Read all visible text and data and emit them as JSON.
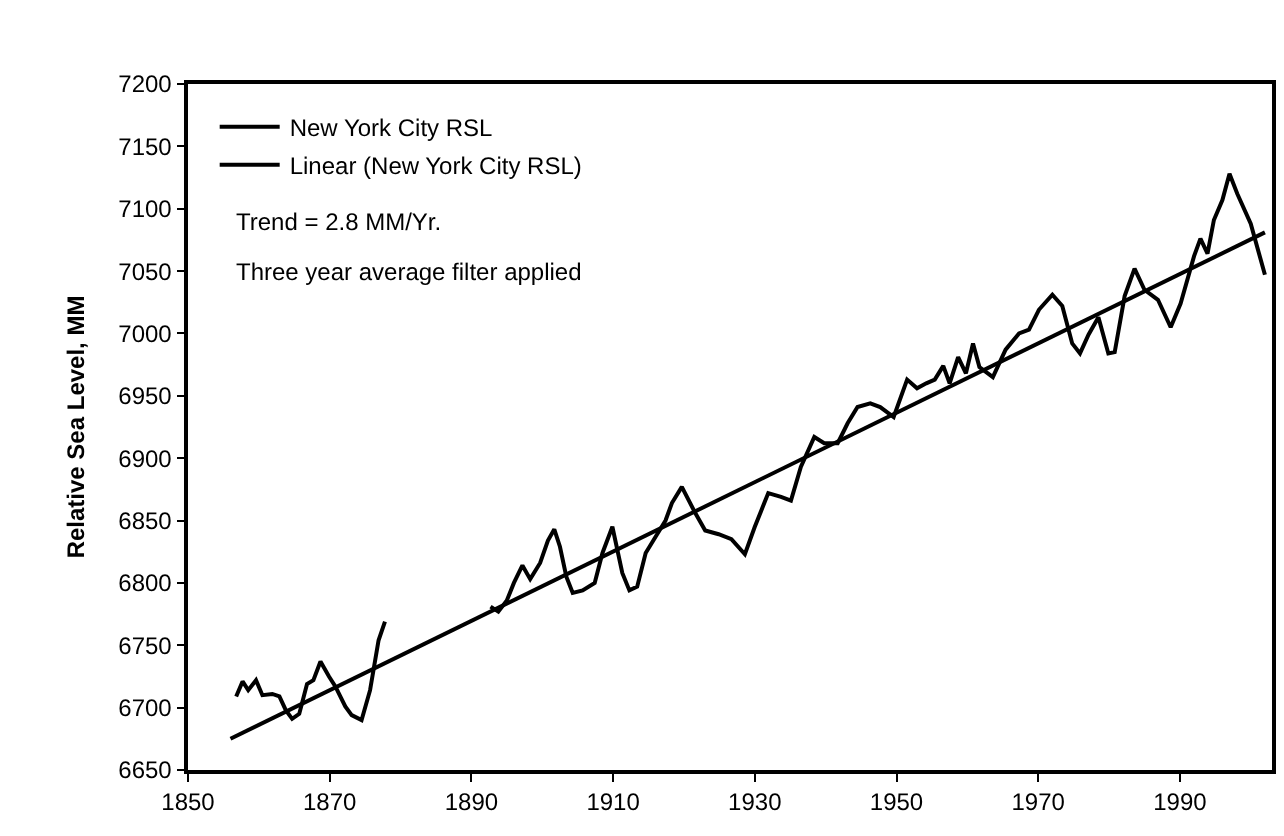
{
  "chart_data": {
    "type": "line",
    "ylabel": "Relative Sea Level, MM",
    "xlim": [
      1850,
      2003
    ],
    "xticks": [
      1850,
      1870,
      1890,
      1910,
      1930,
      1950,
      1970,
      1990
    ],
    "ylim": [
      6650,
      7200
    ],
    "yticks": [
      6650,
      6700,
      6750,
      6800,
      6850,
      6900,
      6950,
      7000,
      7050,
      7100,
      7150,
      7200
    ],
    "legend": "top left",
    "marker": "none",
    "line_style": "solid",
    "annotations": [
      "Trend = 2.8 MM/Yr.",
      "Three year average filter applied"
    ],
    "series": [
      {
        "name": "New York City RSL",
        "color": "#000000",
        "x": [
          1856.8,
          1857.7,
          1858.5,
          1859.6,
          1860.5,
          1861.9,
          1862.9,
          1863.8,
          1864.7,
          1865.7,
          1866.8,
          1867.7,
          1868.7,
          1869.9,
          1870.8,
          1872.2,
          1873.1,
          1874.5,
          1875.7,
          1876.9,
          1877.8,
          1885,
          1892.7,
          1893.8,
          1895,
          1896,
          1897.2,
          1898.3,
          1899.7,
          1900.8,
          1901.7,
          1902.5,
          1903.4,
          1904.3,
          1905.7,
          1907.4,
          1908.5,
          1909.9,
          1911.3,
          1912.3,
          1913.4,
          1914.6,
          1916,
          1917.4,
          1918.3,
          1919.7,
          1921.6,
          1923,
          1924.9,
          1926.7,
          1928.6,
          1930,
          1931.9,
          1933.7,
          1935.1,
          1936.5,
          1938.4,
          1939.8,
          1941.7,
          1943.1,
          1944.5,
          1946.3,
          1947.7,
          1949.6,
          1951.5,
          1952.9,
          1954.2,
          1955.4,
          1956.6,
          1957.5,
          1958.7,
          1959.8,
          1960.8,
          1961.7,
          1963.6,
          1965.4,
          1967.3,
          1968.7,
          1970.1,
          1972,
          1973.4,
          1974.8,
          1975.9,
          1977.1,
          1978.5,
          1979.9,
          1980.8,
          1982.2,
          1983.6,
          1985,
          1986.9,
          1988.7,
          1990.1,
          1992,
          1992.9,
          1993.9,
          1994.8,
          1996,
          1997,
          1998.1,
          2000,
          2002
        ],
        "values": [
          6709,
          6721,
          6714,
          6722,
          6710,
          6711,
          6709,
          6698,
          6691,
          6695,
          6719,
          6722,
          6737,
          6725,
          6717,
          6701,
          6694,
          6690,
          6714,
          6754,
          6769,
          null,
          6781,
          6777,
          6786,
          6800,
          6814,
          6803,
          6816,
          6834,
          6843,
          6829,
          6805,
          6792,
          6794,
          6800,
          6824,
          6845,
          6808,
          6794,
          6797,
          6824,
          6837,
          6850,
          6864,
          6877,
          6856,
          6842,
          6839,
          6835,
          6823,
          6845,
          6872,
          6869,
          6866,
          6893,
          6917,
          6912,
          6912,
          6928,
          6941,
          6944,
          6941,
          6933,
          6963,
          6956,
          6960,
          6963,
          6974,
          6960,
          6981,
          6968,
          6992,
          6973,
          6965,
          6987,
          7000,
          7003,
          7019,
          7031,
          7022,
          6992,
          6984,
          6999,
          7013,
          6984,
          6985,
          7030,
          7052,
          7035,
          7027,
          7005,
          7024,
          7062,
          7076,
          7064,
          7091,
          7107,
          7128,
          7112,
          7088,
          7047
        ]
      },
      {
        "name": "Linear (New York City RSL)",
        "color": "#000000",
        "x": [
          1856,
          2002
        ],
        "values": [
          6675,
          7081
        ]
      }
    ]
  }
}
